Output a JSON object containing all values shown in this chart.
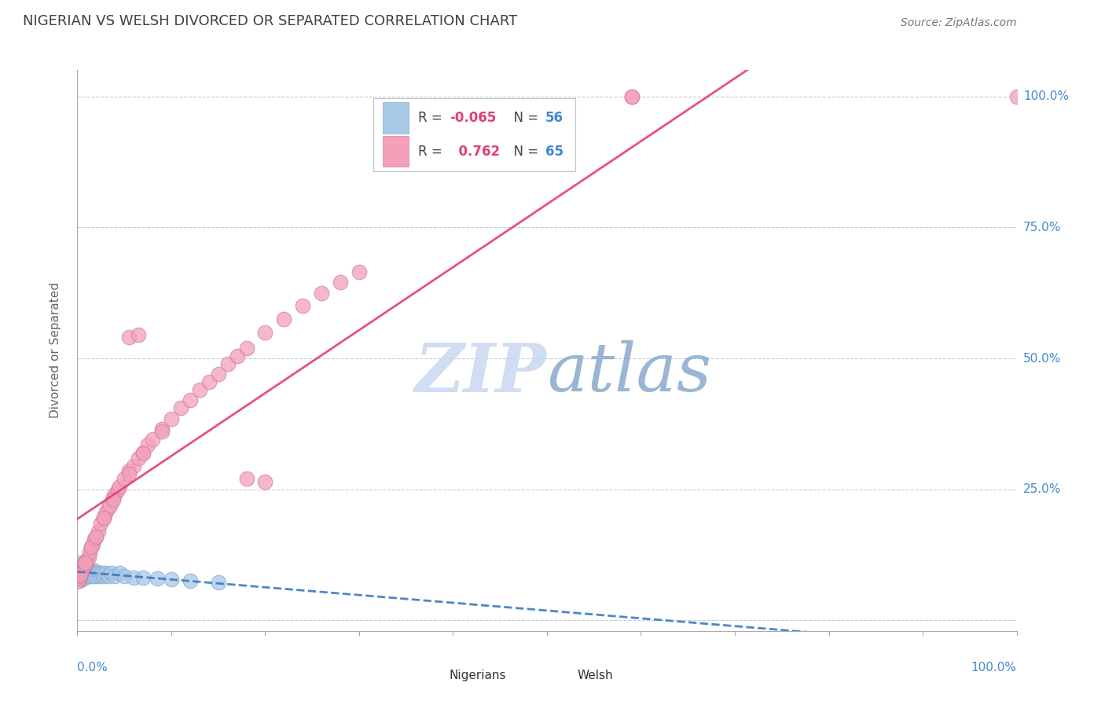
{
  "title": "NIGERIAN VS WELSH DIVORCED OR SEPARATED CORRELATION CHART",
  "source": "Source: ZipAtlas.com",
  "ylabel": "Divorced or Separated",
  "legend_nigerian": {
    "R": -0.065,
    "N": 56,
    "label": "Nigerians"
  },
  "legend_welsh": {
    "R": 0.762,
    "N": 65,
    "label": "Welsh"
  },
  "nigerian_color": "#a8c8e8",
  "welsh_color": "#f4a0b8",
  "nigerian_edge_color": "#88aace",
  "welsh_edge_color": "#d080a0",
  "nigerian_line_color": "#3a7ac0",
  "welsh_line_color": "#e04070",
  "watermark_color": "#ccd8f0",
  "grid_color": "#c0cce0",
  "title_color": "#404040",
  "axis_label_color": "#4488cc",
  "legend_R_color": "#e04070",
  "legend_N_color": "#4488cc",
  "nigerian_scatter_x": [
    0.001,
    0.001,
    0.001,
    0.002,
    0.002,
    0.002,
    0.002,
    0.003,
    0.003,
    0.003,
    0.003,
    0.004,
    0.004,
    0.004,
    0.005,
    0.005,
    0.005,
    0.006,
    0.006,
    0.006,
    0.007,
    0.007,
    0.008,
    0.008,
    0.008,
    0.009,
    0.009,
    0.01,
    0.01,
    0.011,
    0.011,
    0.012,
    0.013,
    0.014,
    0.015,
    0.016,
    0.017,
    0.018,
    0.019,
    0.02,
    0.022,
    0.024,
    0.026,
    0.028,
    0.03,
    0.033,
    0.036,
    0.04,
    0.045,
    0.05,
    0.06,
    0.07,
    0.085,
    0.1,
    0.12,
    0.15
  ],
  "nigerian_scatter_y": [
    0.08,
    0.09,
    0.1,
    0.075,
    0.085,
    0.095,
    0.105,
    0.08,
    0.09,
    0.1,
    0.11,
    0.085,
    0.095,
    0.105,
    0.08,
    0.09,
    0.1,
    0.085,
    0.095,
    0.105,
    0.08,
    0.09,
    0.085,
    0.095,
    0.105,
    0.09,
    0.1,
    0.085,
    0.095,
    0.09,
    0.1,
    0.095,
    0.09,
    0.085,
    0.095,
    0.09,
    0.085,
    0.095,
    0.09,
    0.085,
    0.09,
    0.085,
    0.09,
    0.085,
    0.09,
    0.085,
    0.09,
    0.085,
    0.09,
    0.085,
    0.082,
    0.082,
    0.08,
    0.078,
    0.075,
    0.072
  ],
  "welsh_scatter_x": [
    0.001,
    0.002,
    0.003,
    0.004,
    0.005,
    0.006,
    0.007,
    0.008,
    0.009,
    0.01,
    0.012,
    0.013,
    0.015,
    0.016,
    0.018,
    0.02,
    0.022,
    0.025,
    0.028,
    0.03,
    0.033,
    0.035,
    0.038,
    0.04,
    0.043,
    0.045,
    0.05,
    0.055,
    0.06,
    0.065,
    0.07,
    0.075,
    0.08,
    0.09,
    0.1,
    0.11,
    0.12,
    0.13,
    0.14,
    0.15,
    0.16,
    0.17,
    0.18,
    0.2,
    0.22,
    0.24,
    0.26,
    0.28,
    0.3,
    0.003,
    0.008,
    0.015,
    0.02,
    0.028,
    0.038,
    0.055,
    0.07,
    0.09,
    0.59,
    0.59,
    0.18,
    0.2,
    0.055,
    0.065,
    1.0
  ],
  "welsh_scatter_y": [
    0.075,
    0.08,
    0.085,
    0.09,
    0.095,
    0.1,
    0.1,
    0.105,
    0.11,
    0.115,
    0.12,
    0.13,
    0.14,
    0.145,
    0.155,
    0.16,
    0.17,
    0.185,
    0.195,
    0.205,
    0.215,
    0.22,
    0.235,
    0.24,
    0.25,
    0.255,
    0.27,
    0.285,
    0.295,
    0.31,
    0.32,
    0.335,
    0.345,
    0.365,
    0.385,
    0.405,
    0.42,
    0.44,
    0.455,
    0.47,
    0.49,
    0.505,
    0.52,
    0.55,
    0.575,
    0.6,
    0.625,
    0.645,
    0.665,
    0.088,
    0.11,
    0.14,
    0.16,
    0.195,
    0.23,
    0.28,
    0.318,
    0.36,
    1.0,
    1.0,
    0.27,
    0.265,
    0.54,
    0.545,
    1.0
  ],
  "xlim": [
    0.0,
    1.0
  ],
  "ylim": [
    -0.02,
    1.05
  ],
  "ytick_positions": [
    0.0,
    0.25,
    0.5,
    0.75,
    1.0
  ],
  "ytick_labels": [
    "",
    "25.0%",
    "50.0%",
    "75.0%",
    "100.0%"
  ],
  "background_color": "#ffffff",
  "figsize": [
    14.06,
    8.92
  ]
}
